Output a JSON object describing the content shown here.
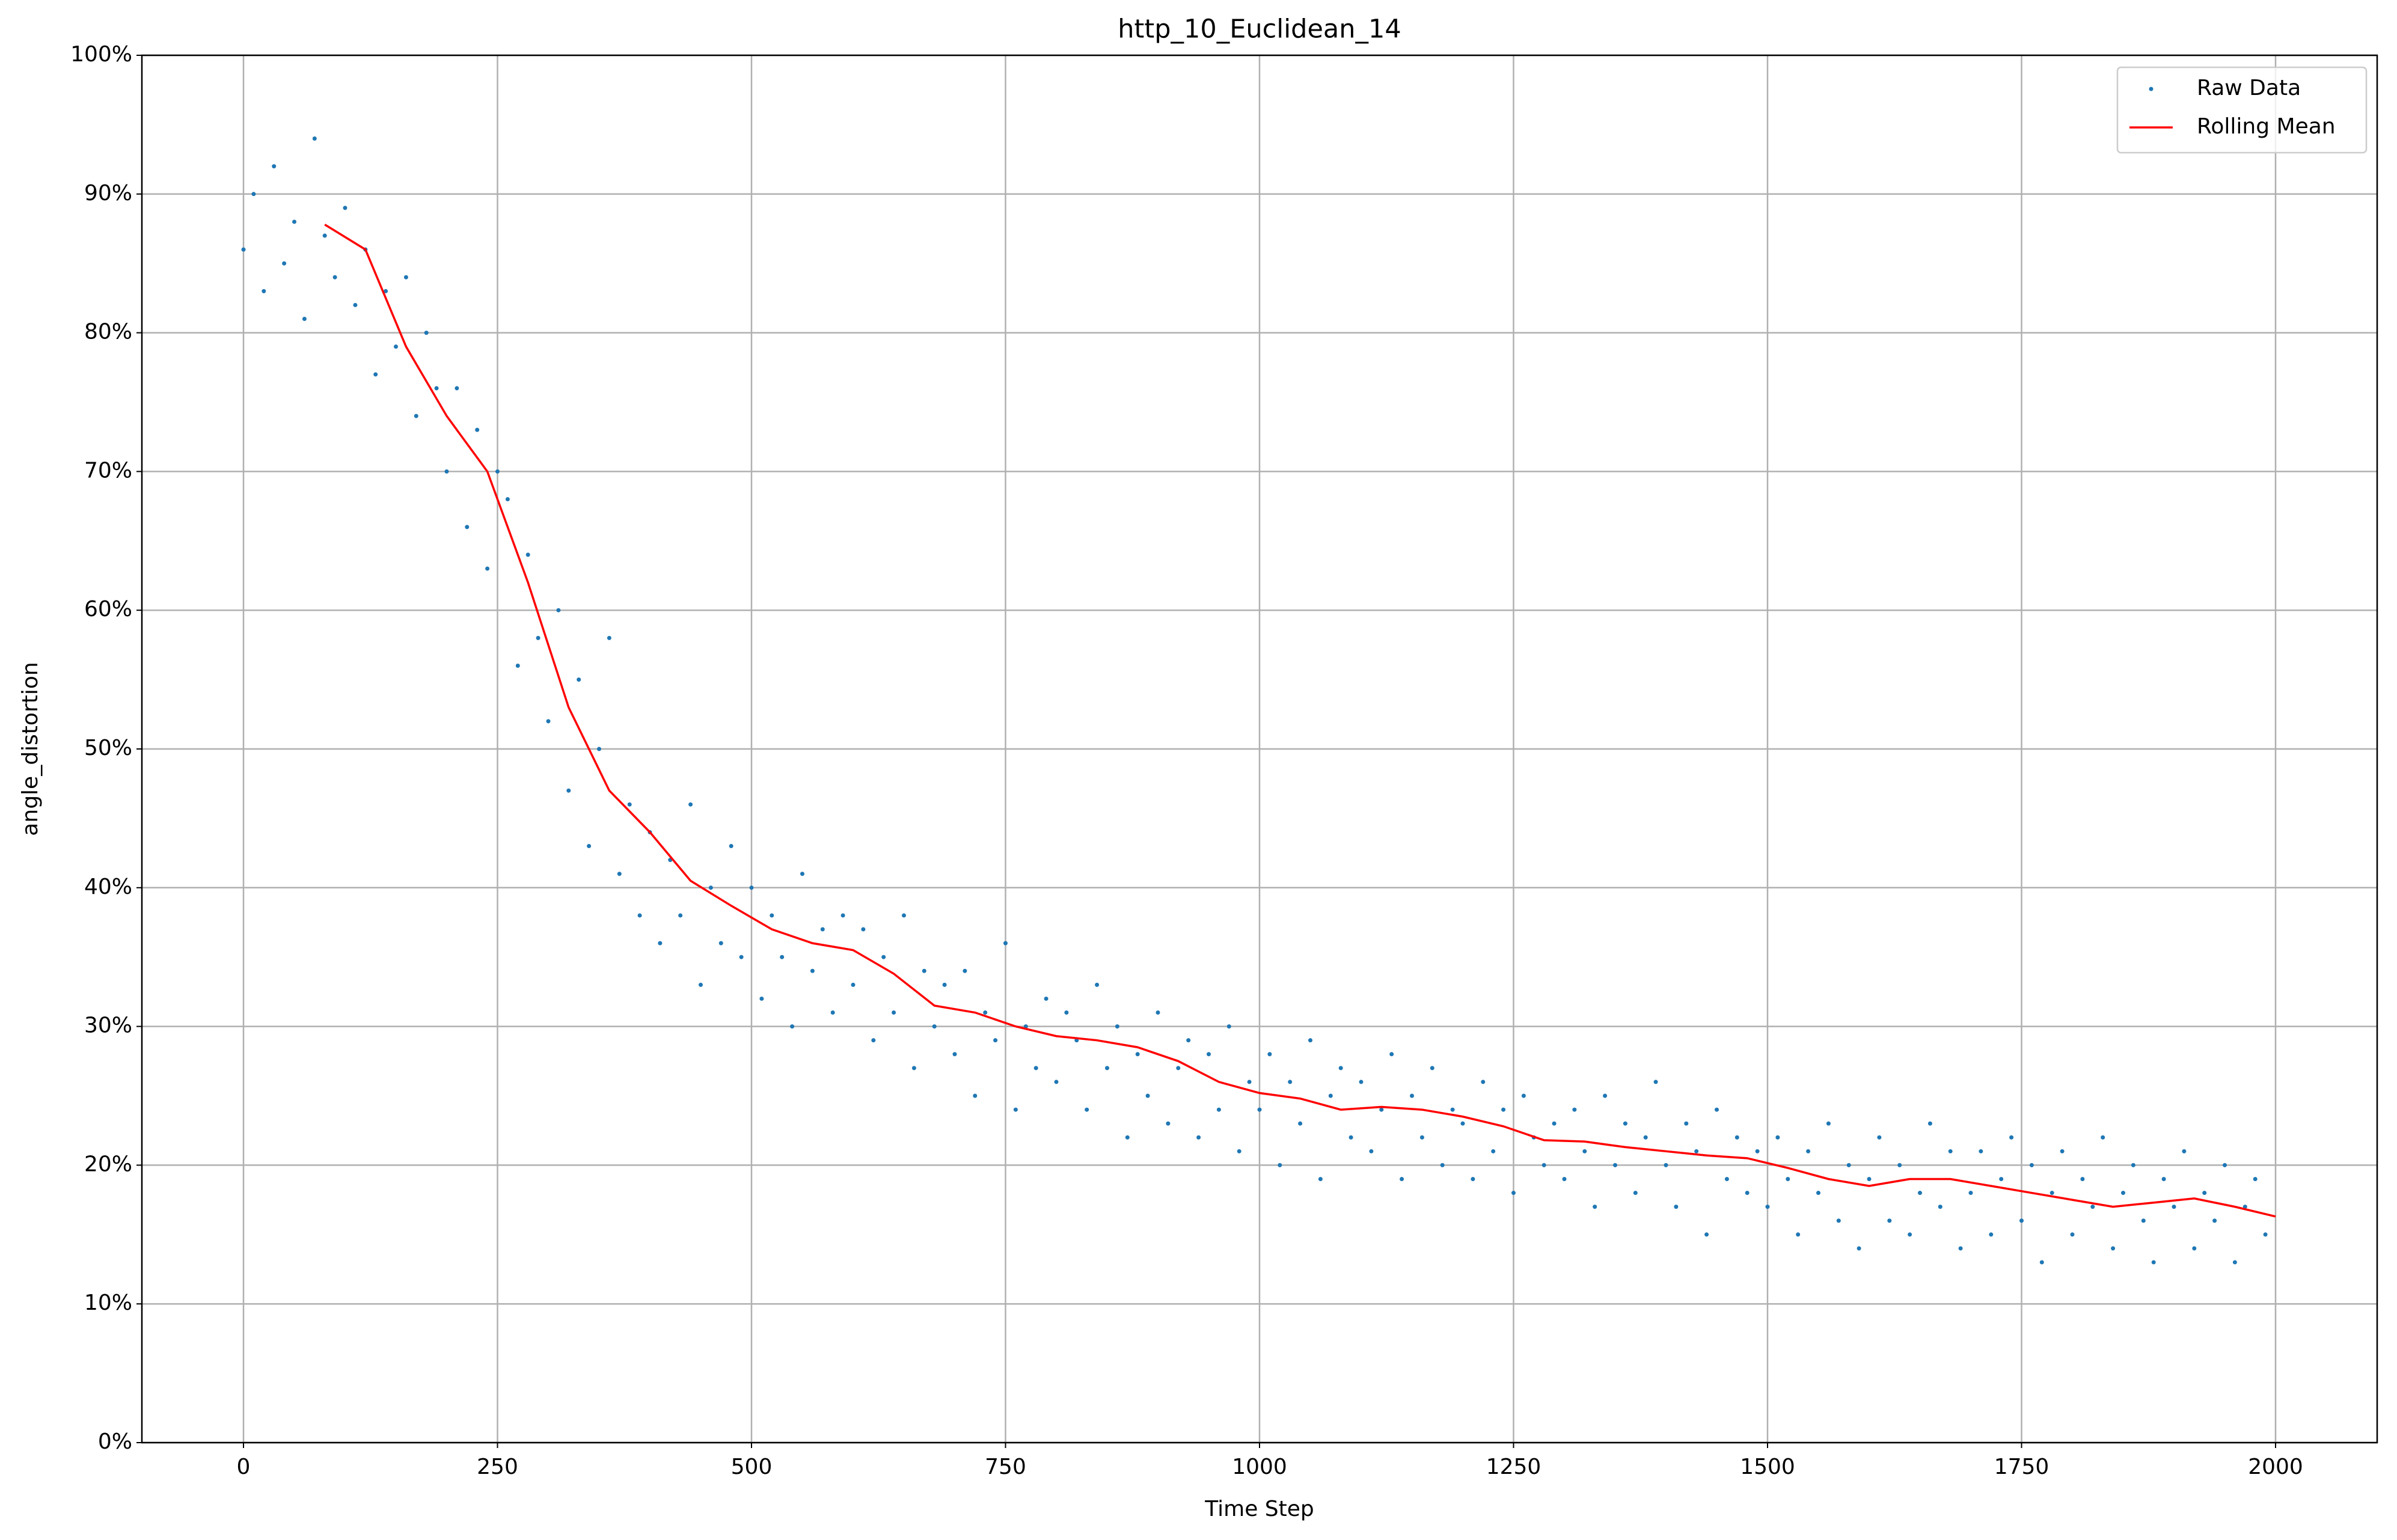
{
  "chart_data": {
    "type": "scatter",
    "title": "http_10_Euclidean_14",
    "xlabel": "Time Step",
    "ylabel": "angle_distortion",
    "xlim": [
      -100,
      2100
    ],
    "ylim": [
      0,
      100
    ],
    "xticks": [
      0,
      250,
      500,
      750,
      1000,
      1250,
      1500,
      1750,
      2000
    ],
    "yticks": [
      {
        "value": 0,
        "label": "0%"
      },
      {
        "value": 10,
        "label": "10%"
      },
      {
        "value": 20,
        "label": "20%"
      },
      {
        "value": 30,
        "label": "30%"
      },
      {
        "value": 40,
        "label": "40%"
      },
      {
        "value": 50,
        "label": "50%"
      },
      {
        "value": 60,
        "label": "60%"
      },
      {
        "value": 70,
        "label": "70%"
      },
      {
        "value": 80,
        "label": "80%"
      },
      {
        "value": 90,
        "label": "90%"
      },
      {
        "value": 100,
        "label": "100%"
      }
    ],
    "grid": true,
    "legend": "upper right",
    "series": [
      {
        "name": "Raw Data",
        "type": "scatter",
        "color": "#1f77b4",
        "x": [
          0,
          10,
          20,
          30,
          40,
          50,
          60,
          70,
          80,
          90,
          100,
          110,
          120,
          130,
          140,
          150,
          160,
          170,
          180,
          190,
          200,
          210,
          220,
          230,
          240,
          250,
          260,
          270,
          280,
          290,
          300,
          310,
          320,
          330,
          340,
          350,
          360,
          370,
          380,
          390,
          400,
          410,
          420,
          430,
          440,
          450,
          460,
          470,
          480,
          490,
          500,
          510,
          520,
          530,
          540,
          550,
          560,
          570,
          580,
          590,
          600,
          610,
          620,
          630,
          640,
          650,
          660,
          670,
          680,
          690,
          700,
          710,
          720,
          730,
          740,
          750,
          760,
          770,
          780,
          790,
          800,
          810,
          820,
          830,
          840,
          850,
          860,
          870,
          880,
          890,
          900,
          910,
          920,
          930,
          940,
          950,
          960,
          970,
          980,
          990,
          1000,
          1010,
          1020,
          1030,
          1040,
          1050,
          1060,
          1070,
          1080,
          1090,
          1100,
          1110,
          1120,
          1130,
          1140,
          1150,
          1160,
          1170,
          1180,
          1190,
          1200,
          1210,
          1220,
          1230,
          1240,
          1250,
          1260,
          1270,
          1280,
          1290,
          1300,
          1310,
          1320,
          1330,
          1340,
          1350,
          1360,
          1370,
          1380,
          1390,
          1400,
          1410,
          1420,
          1430,
          1440,
          1450,
          1460,
          1470,
          1480,
          1490,
          1500,
          1510,
          1520,
          1530,
          1540,
          1550,
          1560,
          1570,
          1580,
          1590,
          1600,
          1610,
          1620,
          1630,
          1640,
          1650,
          1660,
          1670,
          1680,
          1690,
          1700,
          1710,
          1720,
          1730,
          1740,
          1750,
          1760,
          1770,
          1780,
          1790,
          1800,
          1810,
          1820,
          1830,
          1840,
          1850,
          1860,
          1870,
          1880,
          1890,
          1900,
          1910,
          1920,
          1930,
          1940,
          1950,
          1960,
          1970,
          1980,
          1990
        ],
        "values": [
          86,
          90,
          83,
          92,
          85,
          88,
          81,
          94,
          87,
          84,
          89,
          82,
          86,
          77,
          83,
          79,
          84,
          74,
          80,
          76,
          70,
          76,
          66,
          73,
          63,
          70,
          68,
          56,
          64,
          58,
          52,
          60,
          47,
          55,
          43,
          50,
          58,
          41,
          46,
          38,
          44,
          36,
          42,
          38,
          46,
          33,
          40,
          36,
          43,
          35,
          40,
          32,
          38,
          35,
          30,
          41,
          34,
          37,
          31,
          38,
          33,
          37,
          29,
          35,
          31,
          38,
          27,
          34,
          30,
          33,
          28,
          34,
          25,
          31,
          29,
          36,
          24,
          30,
          27,
          32,
          26,
          31,
          29,
          24,
          33,
          27,
          30,
          22,
          28,
          25,
          31,
          23,
          27,
          29,
          22,
          28,
          24,
          30,
          21,
          26,
          24,
          28,
          20,
          26,
          23,
          29,
          19,
          25,
          27,
          22,
          26,
          21,
          24,
          28,
          19,
          25,
          22,
          27,
          20,
          24,
          23,
          19,
          26,
          21,
          24,
          18,
          25,
          22,
          20,
          23,
          19,
          24,
          21,
          17,
          25,
          20,
          23,
          18,
          22,
          26,
          20,
          17,
          23,
          21,
          15,
          24,
          19,
          22,
          18,
          21,
          17,
          22,
          19,
          15,
          21,
          18,
          23,
          16,
          20,
          14,
          19,
          22,
          16,
          20,
          15,
          18,
          23,
          17,
          21,
          14,
          18,
          21,
          15,
          19,
          22,
          16,
          20,
          13,
          18,
          21,
          15,
          19,
          17,
          22,
          14,
          18,
          20,
          16,
          13,
          19,
          17,
          21,
          14,
          18,
          16,
          20,
          13,
          17,
          19,
          15
        ]
      },
      {
        "name": "Rolling Mean",
        "type": "line",
        "color": "#ff0000",
        "x": [
          80,
          120,
          160,
          200,
          240,
          280,
          320,
          360,
          400,
          440,
          480,
          520,
          560,
          600,
          640,
          680,
          720,
          760,
          800,
          840,
          880,
          920,
          960,
          1000,
          1040,
          1080,
          1120,
          1160,
          1200,
          1240,
          1280,
          1320,
          1360,
          1400,
          1440,
          1480,
          1520,
          1560,
          1600,
          1640,
          1680,
          1720,
          1760,
          1800,
          1840,
          1880,
          1920,
          1960,
          2000
        ],
        "values": [
          87.8,
          86,
          79,
          74,
          70,
          62,
          53,
          47,
          44,
          40.5,
          38.7,
          37,
          36,
          35.5,
          33.8,
          31.5,
          31,
          30,
          29.3,
          29,
          28.5,
          27.5,
          26,
          25.2,
          24.8,
          24,
          24.2,
          24,
          23.5,
          22.8,
          21.8,
          21.7,
          21.3,
          21,
          20.7,
          20.5,
          19.8,
          19,
          18.5,
          19,
          19,
          18.5,
          18,
          17.5,
          17,
          17.3,
          17.6,
          17,
          16.3
        ]
      }
    ]
  }
}
